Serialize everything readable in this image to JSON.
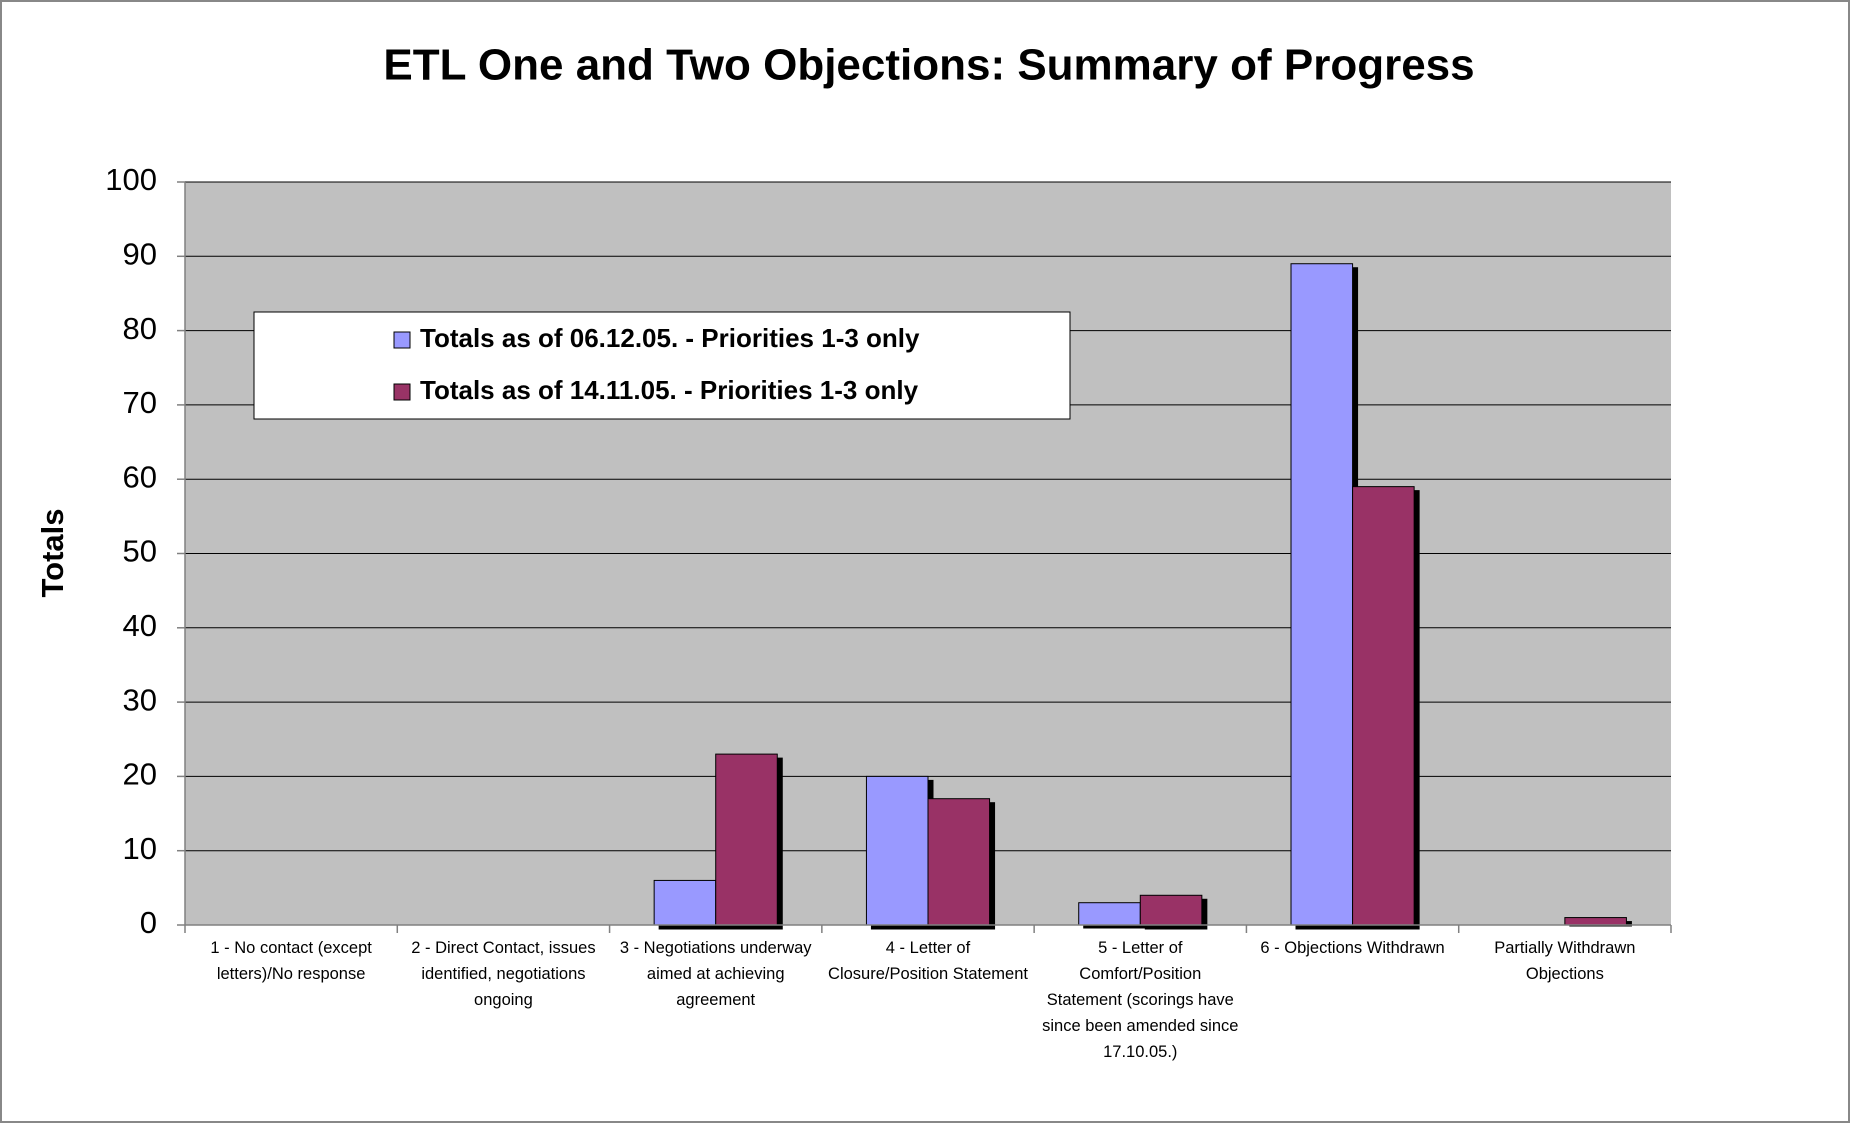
{
  "chart_data": {
    "type": "bar",
    "title": "ETL One and Two Objections: Summary of Progress",
    "y_label": "Totals",
    "categories": [
      "1 - No contact (except letters)/No response",
      "2 - Direct Contact, issues identified, negotiations ongoing",
      "3 - Negotiations underway aimed at achieving agreement",
      "4 - Letter of Closure/Position Statement",
      "5 - Letter of Comfort/Position Statement (scorings have since been amended since 17.10.05.)",
      "6 - Objections Withdrawn",
      "Partially Withdrawn Objections"
    ],
    "series": [
      {
        "name": "Totals as of 06.12.05. - Priorities 1-3 only",
        "color": "#9999ff",
        "values": [
          0,
          0,
          6,
          20,
          3,
          89,
          0
        ]
      },
      {
        "name": "Totals as of 14.11.05. - Priorities 1-3 only",
        "color": "#993366",
        "values": [
          0,
          0,
          23,
          17,
          4,
          59,
          1
        ]
      }
    ],
    "ylim": [
      0,
      100
    ],
    "yticks": [
      0,
      10,
      20,
      30,
      40,
      50,
      60,
      70,
      80,
      90,
      100
    ],
    "grid": true,
    "legend": "upper left"
  }
}
